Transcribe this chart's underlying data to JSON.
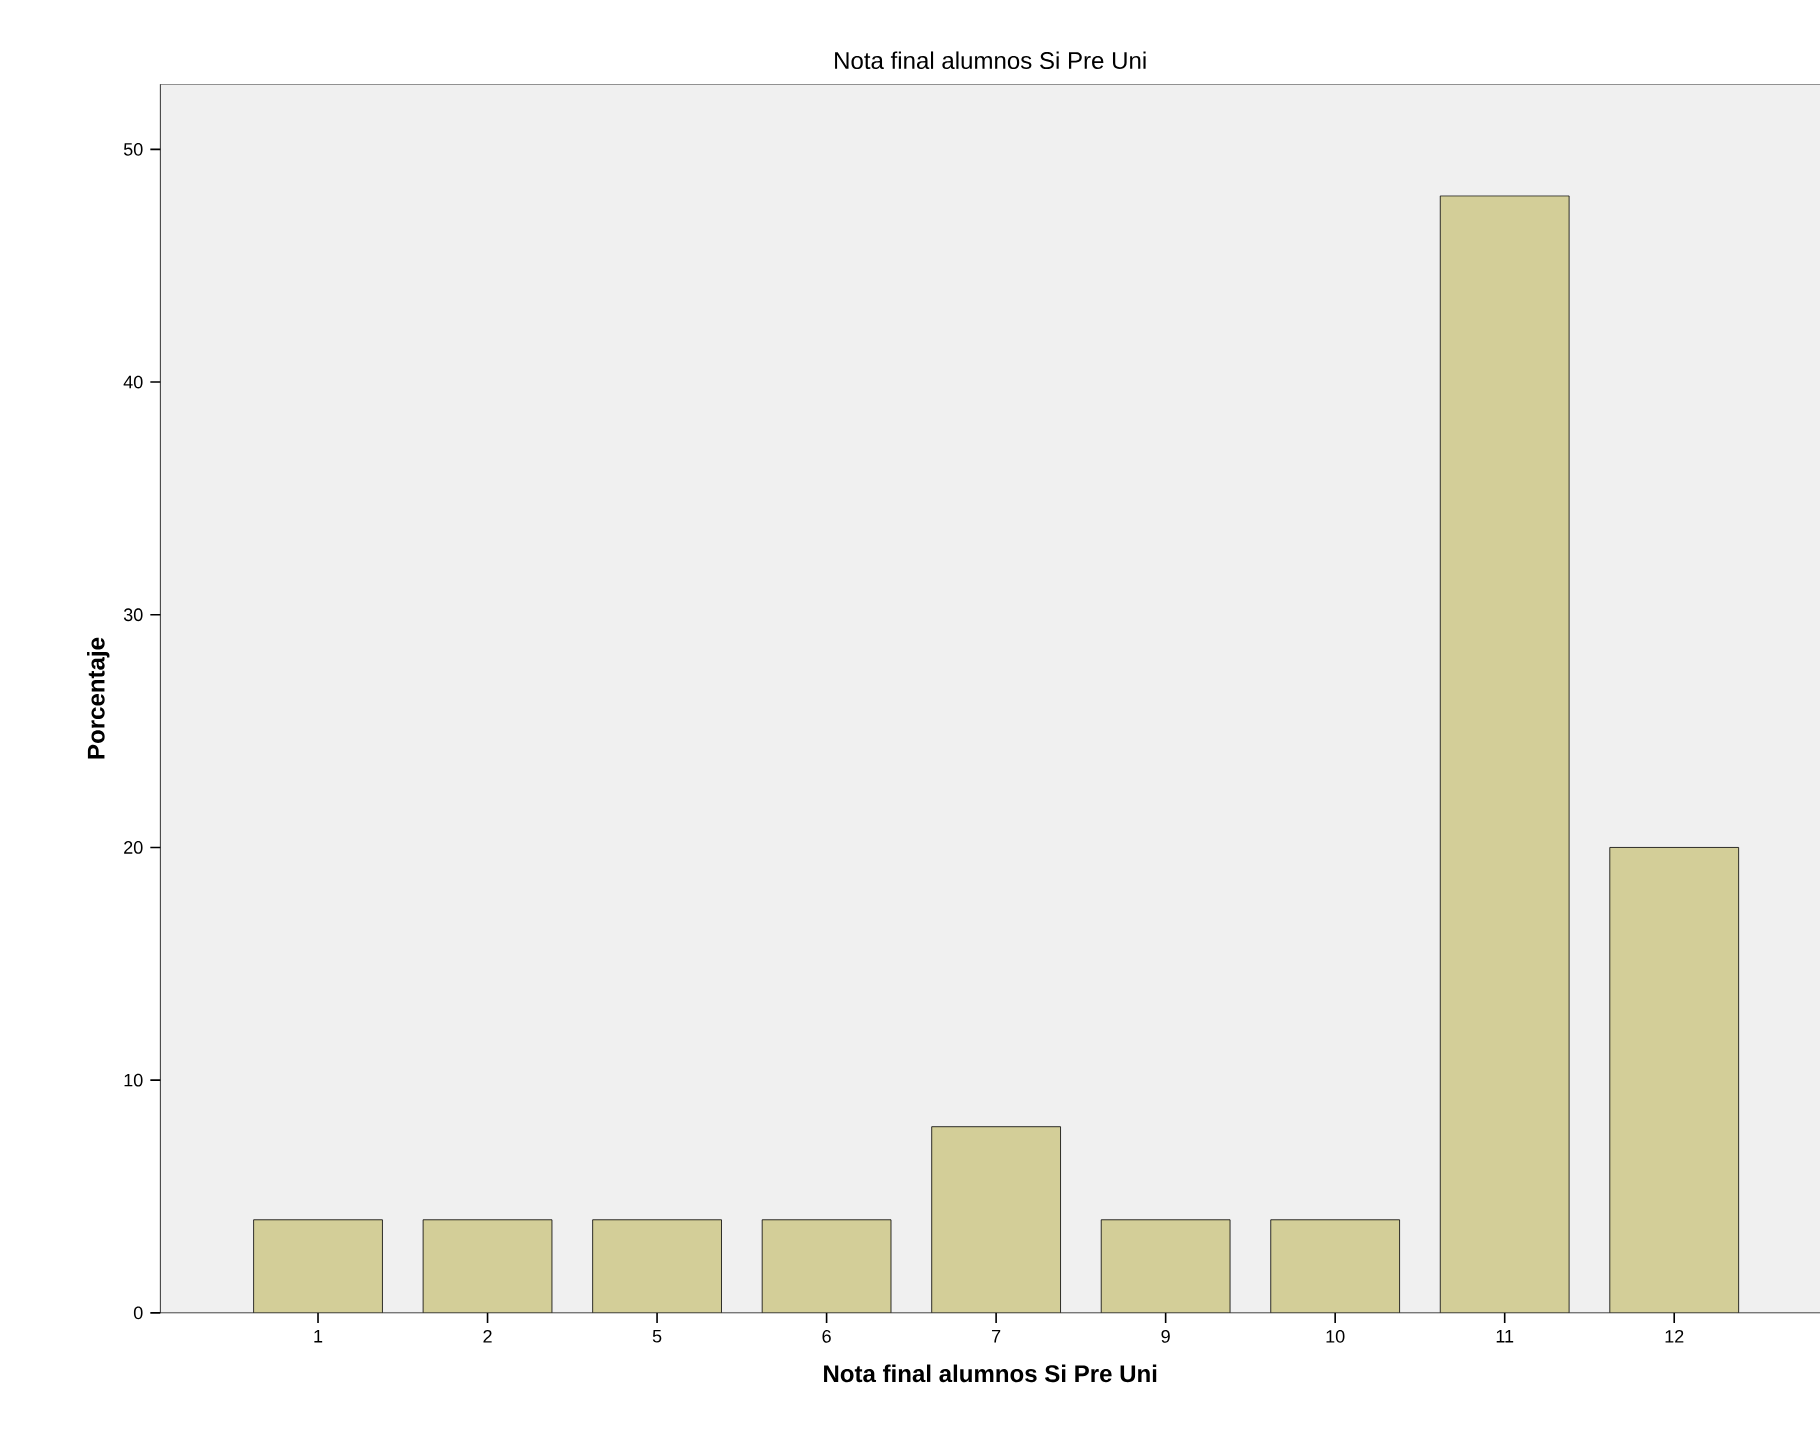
{
  "chart_data": {
    "type": "bar",
    "title": "Nota final alumnos Si Pre Uni",
    "xlabel": "Nota final alumnos Si Pre Uni",
    "ylabel": "Porcentaje",
    "categories": [
      "1",
      "2",
      "5",
      "6",
      "7",
      "9",
      "10",
      "11",
      "12"
    ],
    "values": [
      4,
      4,
      4,
      4,
      8,
      4,
      4,
      48,
      20
    ],
    "color": "#d3ce98",
    "ylim": [
      0,
      52.8
    ],
    "yticks": [
      0,
      10,
      20,
      30,
      40,
      50
    ],
    "grid": false
  }
}
